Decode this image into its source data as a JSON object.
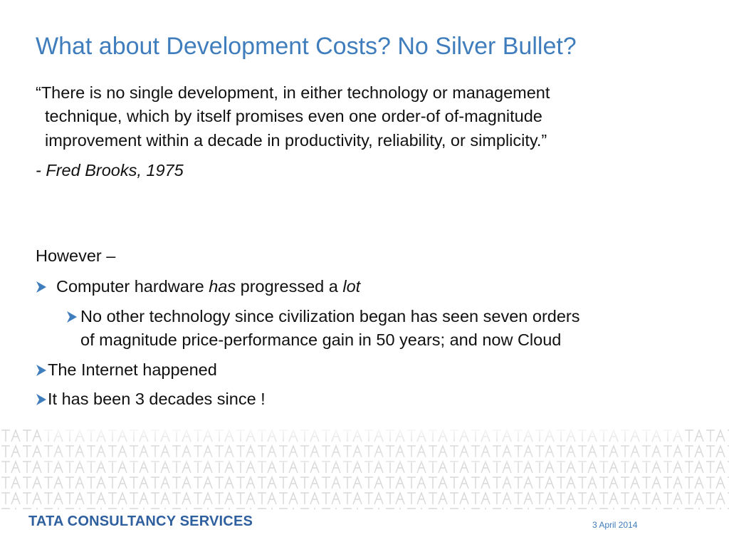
{
  "title": "What about Development Costs? No Silver Bullet?",
  "quote": {
    "lines": [
      "“There is no single development, in either technology or management",
      "technique, which by itself promises even one order-of of-magnitude",
      "improvement within a decade in productivity, reliability, or simplicity.”"
    ],
    "author": "- Fred Brooks, 1975"
  },
  "however": "However –",
  "bullets": [
    {
      "parts": [
        "Computer hardware ",
        "has",
        " progressed a ",
        "lot"
      ],
      "sub": {
        "lines": [
          "No other technology since civilization began has seen seven orders",
          "of magnitude price-performance gain in 50 years; and now Cloud"
        ]
      }
    },
    {
      "text": "The Internet happened"
    },
    {
      "text": "It has been 3 decades since !"
    }
  ],
  "footer": {
    "company": "TATA CONSULTANCY SERVICES",
    "date": "3 April 2014"
  }
}
